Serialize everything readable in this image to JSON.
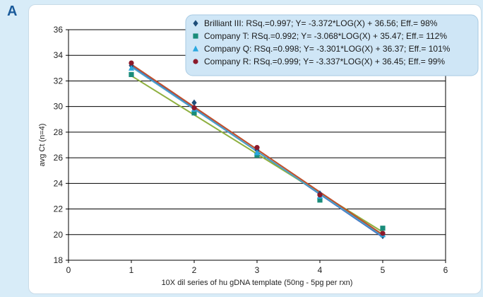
{
  "panel_label": "A",
  "chart_data": {
    "type": "scatter",
    "title": "",
    "xlabel": "10X dil series of hu gDNA template (50ng - 5pg per rxn)",
    "ylabel": "avg Ct (n=4)",
    "xlim": [
      0,
      6
    ],
    "ylim": [
      18,
      36
    ],
    "x_ticks": [
      0,
      1,
      2,
      3,
      4,
      5,
      6
    ],
    "y_ticks": [
      18,
      20,
      22,
      24,
      26,
      28,
      30,
      32,
      34,
      36
    ],
    "grid": {
      "horizontal": true,
      "vertical": false
    },
    "legend_position": "top-right",
    "series": [
      {
        "name": "Brilliant III: RSq.=0.997; Y= -3.372*LOG(X) + 36.56; Eff.= 98%",
        "color": "#1f4e79",
        "marker": "diamond",
        "line_color": "#4a72c4",
        "x": [
          1,
          2,
          3,
          4,
          5
        ],
        "y": [
          33.2,
          30.3,
          26.6,
          23.2,
          19.9
        ],
        "fit": {
          "x": [
            1,
            5
          ],
          "y": [
            33.2,
            19.8
          ]
        }
      },
      {
        "name": "Company T: RSq.=0.992; Y= -3.068*LOG(X) + 35.47; Eff.= 112%",
        "color": "#1a8c7a",
        "marker": "square",
        "line_color": "#8fb040",
        "x": [
          1,
          2,
          3,
          4,
          5
        ],
        "y": [
          32.5,
          29.5,
          26.2,
          22.7,
          20.5
        ],
        "fit": {
          "x": [
            1,
            5
          ],
          "y": [
            32.4,
            20.2
          ]
        }
      },
      {
        "name": "Company Q: RSq.=0.998; Y= -3.301*LOG(X) + 36.37; Eff.= 101%",
        "color": "#2aa8e0",
        "marker": "triangle",
        "line_color": "#4aa0c8",
        "x": [
          1,
          2,
          3,
          4,
          5
        ],
        "y": [
          33.0,
          29.8,
          26.4,
          23.0,
          20.0
        ],
        "fit": {
          "x": [
            1,
            5
          ],
          "y": [
            33.1,
            19.9
          ]
        }
      },
      {
        "name": "Company R: RSq.=0.999; Y= -3.337*LOG(X) + 36.45; Eff.= 99%",
        "color": "#8b1a2b",
        "marker": "circle",
        "line_color": "#c0502a",
        "x": [
          1,
          2,
          3,
          4,
          5
        ],
        "y": [
          33.4,
          29.9,
          26.8,
          23.1,
          20.1
        ],
        "fit": {
          "x": [
            1,
            5
          ],
          "y": [
            33.3,
            20.0
          ]
        }
      }
    ]
  }
}
